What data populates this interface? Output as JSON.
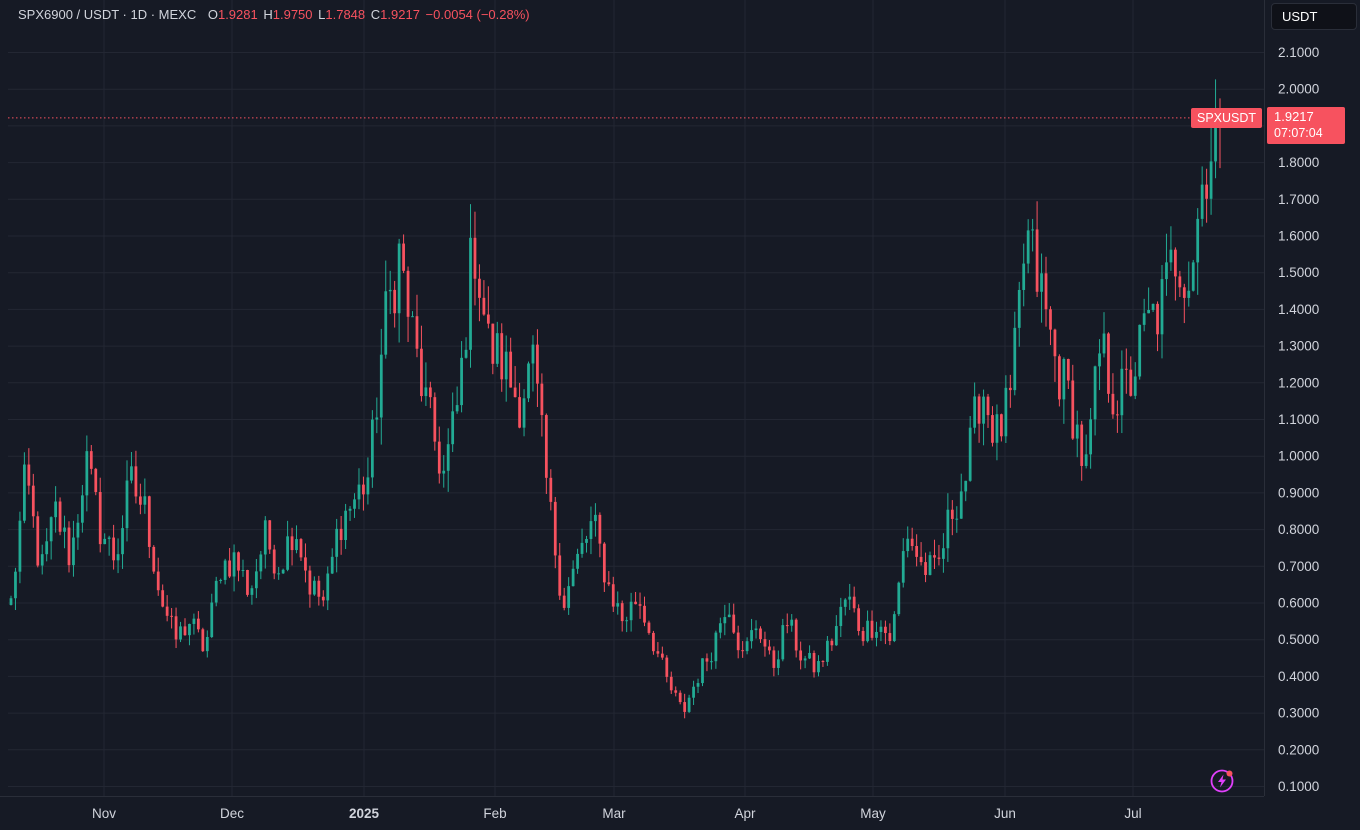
{
  "legend": {
    "symbol": "SPX6900 / USDT · 1D · MEXC",
    "open_label": "O",
    "open": "1.9281",
    "high_label": "H",
    "high": "1.9750",
    "low_label": "L",
    "low": "1.7848",
    "close_label": "C",
    "close": "1.9217",
    "change": "−0.0054 (−0.28%)"
  },
  "currency_button": "USDT",
  "last_price": {
    "symbol_tag": "SPXUSDT",
    "price": "1.9217",
    "countdown": "07:07:04"
  },
  "icons": {
    "alert": "lightning-icon"
  },
  "colors": {
    "background": "#161a25",
    "grid": "#232733",
    "up": "#22ab94",
    "down": "#f7525f",
    "text": "#d1d4dc",
    "bolt": "#e040fb"
  },
  "chart_data": {
    "type": "candlestick",
    "title": "SPX6900 / USDT · 1D · MEXC",
    "y_axis": {
      "range": [
        0.08,
        2.15
      ],
      "tick_labels": [
        "2.1000",
        "2.0000",
        "1.9000",
        "1.8000",
        "1.7000",
        "1.6000",
        "1.5000",
        "1.4000",
        "1.3000",
        "1.2000",
        "1.1000",
        "1.0000",
        "0.9000",
        "0.8000",
        "0.7000",
        "0.6000",
        "0.5000",
        "0.4000",
        "0.3000",
        "0.2000",
        "0.1000"
      ]
    },
    "x_axis": {
      "tick_labels": [
        "Nov",
        "Dec",
        "2025",
        "Feb",
        "Mar",
        "Apr",
        "May",
        "Jun",
        "Jul"
      ],
      "bold": [
        false,
        false,
        true,
        false,
        false,
        false,
        false,
        false,
        false
      ]
    },
    "grid": true,
    "price_line": 1.9217,
    "anchors": [
      0.6,
      0.95,
      0.68,
      0.85,
      0.72,
      0.99,
      0.8,
      0.72,
      0.93,
      0.85,
      0.62,
      0.5,
      0.55,
      0.47,
      0.7,
      0.72,
      0.63,
      0.78,
      0.7,
      0.82,
      0.65,
      0.6,
      0.82,
      0.88,
      0.95,
      1.35,
      1.55,
      1.3,
      1.1,
      0.95,
      1.15,
      1.6,
      1.3,
      1.25,
      1.15,
      1.25,
      0.88,
      0.6,
      0.72,
      0.82,
      0.65,
      0.55,
      0.62,
      0.5,
      0.38,
      0.3,
      0.4,
      0.48,
      0.62,
      0.45,
      0.55,
      0.42,
      0.55,
      0.45,
      0.42,
      0.5,
      0.62,
      0.52,
      0.55,
      0.5,
      0.8,
      0.7,
      0.68,
      0.85,
      0.95,
      1.2,
      1.05,
      1.15,
      1.6,
      1.45,
      1.25,
      1.15,
      0.95,
      1.3,
      1.15,
      1.2,
      1.35,
      1.4,
      1.55,
      1.5,
      1.8,
      1.92
    ],
    "n_candles": 272,
    "last_candle": {
      "open": 1.9281,
      "high": 1.975,
      "low": 1.7848,
      "close": 1.9217
    }
  }
}
